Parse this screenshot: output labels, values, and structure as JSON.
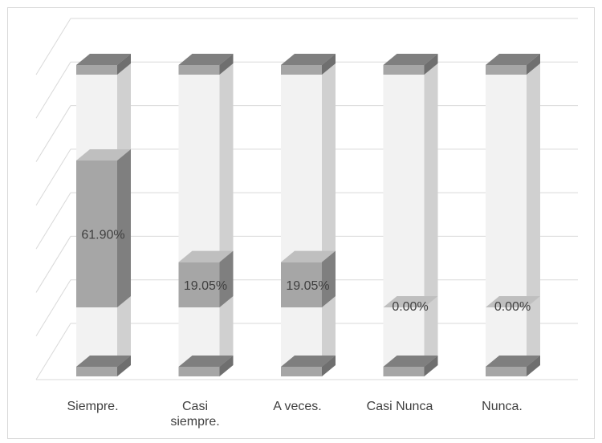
{
  "chart_data": {
    "type": "bar",
    "style": "3d-stacked-cylinder",
    "categories": [
      "Siempre.",
      "Casi siempre.",
      "A veces.",
      "Casi Nunca",
      "Nunca."
    ],
    "category_lines": [
      [
        "Siempre."
      ],
      [
        "Casi",
        "siempre."
      ],
      [
        "A veces."
      ],
      [
        "Casi Nunca"
      ],
      [
        "Nunca."
      ]
    ],
    "values": [
      61.9,
      19.05,
      19.05,
      0.0,
      0.0
    ],
    "data_labels": [
      "61.90%",
      "19.05%",
      "19.05%",
      "0.00%",
      "0.00%"
    ],
    "title": "",
    "xlabel": "",
    "ylabel": "",
    "ylim": [
      0,
      140
    ],
    "y_axis_labels_shown": false,
    "grid": true,
    "legend": "none",
    "colors": {
      "bar_front": "#a6a6a6",
      "bar_top": "#bfbfbf",
      "bar_side": "#7f7f7f",
      "cap_front": "#a6a6a6",
      "cap_top": "#7f7f7f",
      "cap_side": "#6f6f6f",
      "tube_front": "#f2f2f2",
      "tube_side": "#d0d0d0",
      "grid": "#d9d9d9",
      "text": "#404040"
    }
  }
}
